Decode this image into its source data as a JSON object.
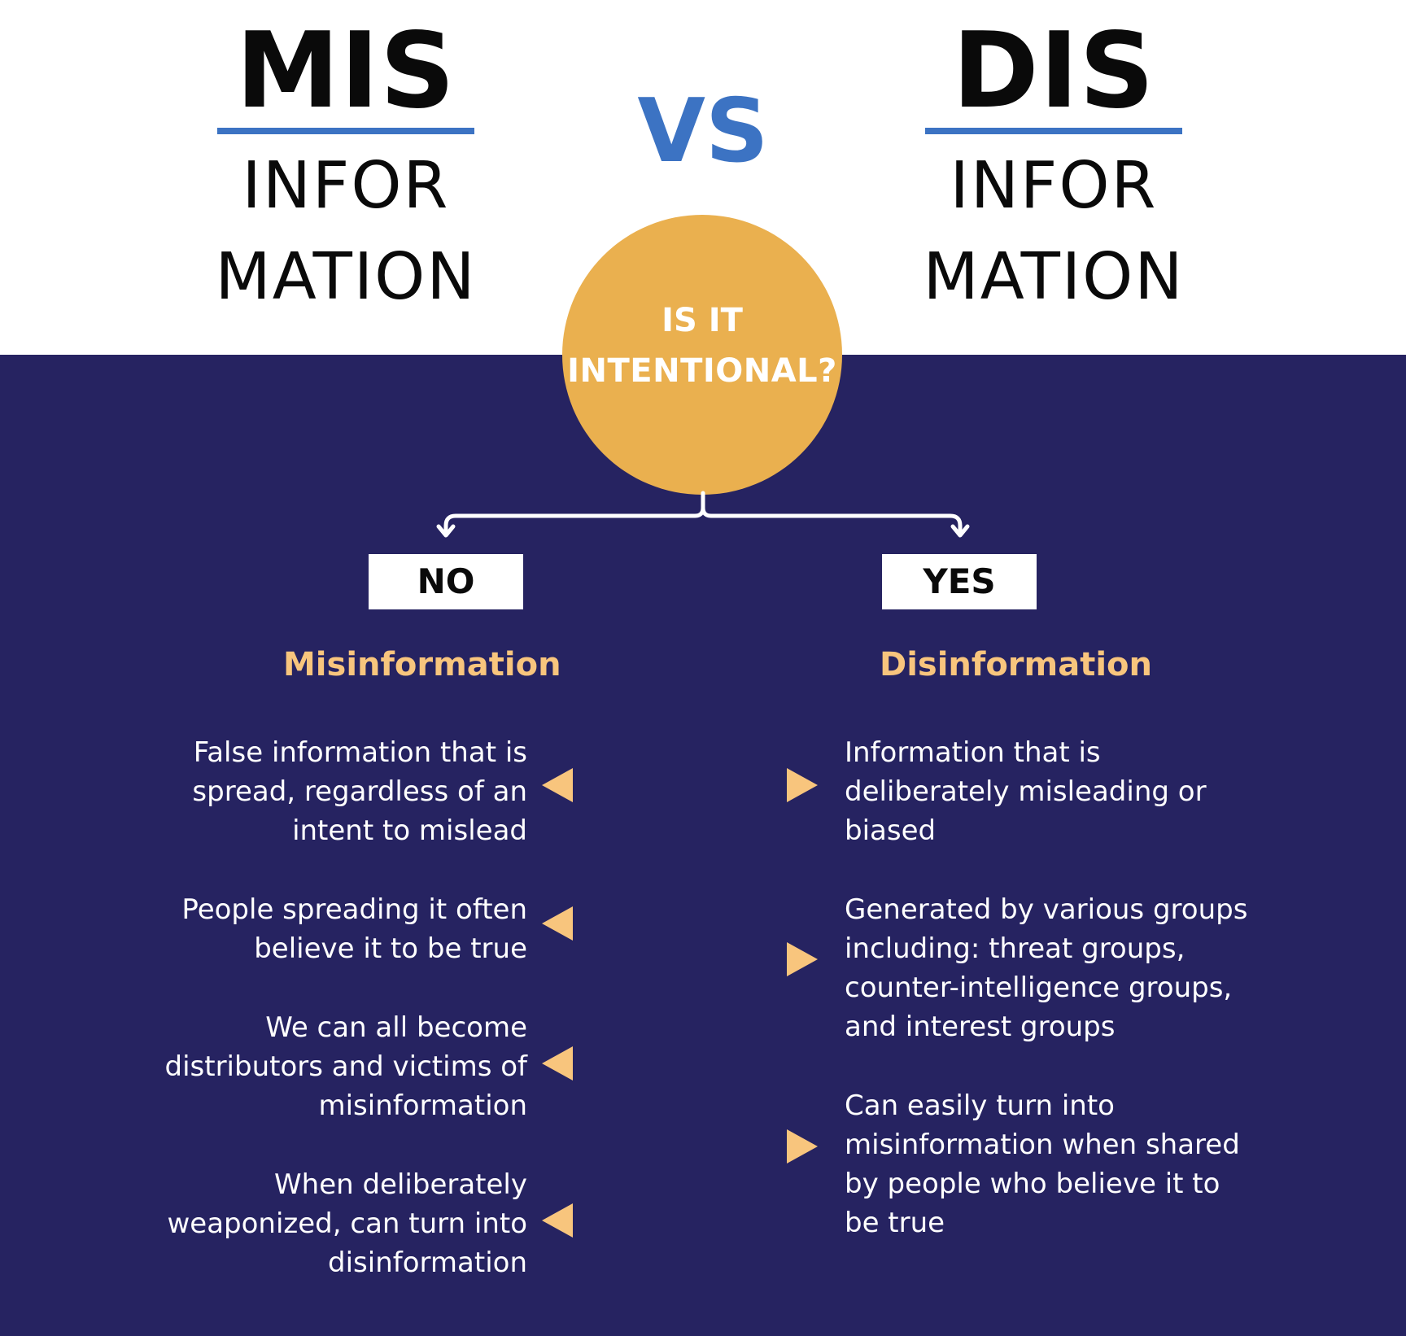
{
  "header": {
    "left": {
      "prefix": "MIS",
      "line1": "INFOR",
      "line2": "MATION"
    },
    "right": {
      "prefix": "DIS",
      "line1": "INFOR",
      "line2": "MATION"
    },
    "vs": "VS"
  },
  "question": {
    "line1": "IS IT",
    "line2": "INTENTIONAL?"
  },
  "branches": {
    "no": {
      "label": "NO",
      "title": "Misinformation"
    },
    "yes": {
      "label": "YES",
      "title": "Disinformation"
    }
  },
  "misinformation_points": [
    {
      "lines": [
        "False  information that is",
        "spread, regardless of an",
        "intent to mislead"
      ]
    },
    {
      "lines": [
        "People spreading it often",
        "believe it to be true"
      ]
    },
    {
      "lines": [
        "We can all become",
        "distributors and victims of",
        "misinformation"
      ]
    },
    {
      "lines": [
        "When deliberately",
        "weaponized, can turn into",
        "disinformation"
      ]
    }
  ],
  "disinformation_points": [
    {
      "lines": [
        "Information that is",
        "deliberately misleading or",
        "biased"
      ]
    },
    {
      "lines": [
        "Generated by various groups",
        "including: threat groups,",
        "counter-intelligence groups,",
        "and interest groups"
      ]
    },
    {
      "lines": [
        "Can easily turn into",
        "misinformation when shared",
        "by people who believe it to",
        "be true"
      ]
    }
  ],
  "colors": {
    "navy": "#262361",
    "blue_accent": "#3c73c3",
    "orange_circle": "#eab04f",
    "peach_text": "#f8c57d",
    "white": "#ffffff",
    "black": "#0a0a0a"
  },
  "icons": {
    "bullet_left": "triangle-left-icon",
    "bullet_right": "triangle-right-icon",
    "branch_arrow": "chevron-down-icon"
  }
}
